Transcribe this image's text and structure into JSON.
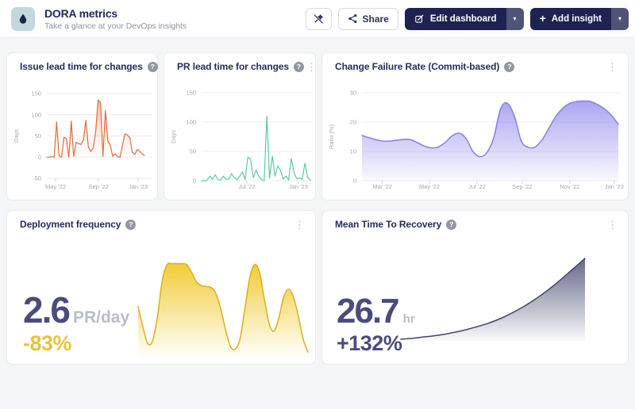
{
  "header": {
    "title": "DORA metrics",
    "subtitle": "Take a glance at your DevOps insights",
    "share_label": "Share",
    "edit_label": "Edit dashboard",
    "add_label": "Add insight"
  },
  "icons": {
    "help": "?",
    "kebab": "⋮",
    "caret": "▾",
    "plus": "+"
  },
  "colors": {
    "navy_button": "#1d2251",
    "navy_button_caret": "#4e5378",
    "title_navy": "#272c5e",
    "big_number": "#4b4b7d",
    "orange": "#e06c3e",
    "teal": "#5fc8a5",
    "purple": "#8b82ea",
    "yellow_line": "#dcae18",
    "yellow_delta": "#e9c23d",
    "navy_spark": "#40456b",
    "navy_delta": "#4b4b7d"
  },
  "chart_data": [
    {
      "type": "area",
      "title": "Issue lead time for changes",
      "ylabel": "Days",
      "ylim": [
        -50,
        150
      ],
      "yticks": [
        -50,
        0,
        50,
        100,
        150
      ],
      "xticks": [
        {
          "f": 0.09,
          "label": "May '22"
        },
        {
          "f": 0.53,
          "label": "Sep '22"
        },
        {
          "f": 0.935,
          "label": "Jan '23"
        }
      ],
      "values": [
        0,
        0,
        1,
        0,
        83,
        3,
        0,
        47,
        44,
        0,
        85,
        2,
        35,
        32,
        30,
        40,
        87,
        25,
        13,
        22,
        60,
        135,
        128,
        2,
        110,
        38,
        28,
        2,
        8,
        1,
        0,
        28,
        55,
        52,
        46,
        12,
        6,
        18,
        14,
        8,
        4
      ],
      "baseline": 0,
      "smooth": false,
      "color": "#e06c3e",
      "fill": [
        "rgba(229,109,58,0.55)",
        "rgba(247,202,178,0.05)"
      ],
      "grid": true,
      "legend": "none"
    },
    {
      "type": "line",
      "title": "PR lead time for changes",
      "ylabel": "Days",
      "ylim": [
        0,
        150
      ],
      "yticks": [
        0,
        50,
        100,
        150
      ],
      "xticks": [
        {
          "f": 0.416,
          "label": "Jul '22"
        },
        {
          "f": 0.89,
          "label": "Jan '23"
        }
      ],
      "values": [
        0,
        0,
        1,
        8,
        2,
        10,
        3,
        1,
        8,
        2,
        3,
        12,
        5,
        2,
        8,
        15,
        2,
        40,
        37,
        5,
        18,
        8,
        2,
        0,
        110,
        4,
        42,
        8,
        25,
        18,
        3,
        8,
        1,
        38,
        14,
        3,
        5,
        2,
        30,
        6,
        1
      ],
      "smooth": false,
      "color": "#5fc8a5",
      "fill": null,
      "grid": true,
      "legend": "none"
    },
    {
      "type": "area",
      "title": "Change Failure Rate (Commit-based)",
      "ylabel": "Ratio (%)",
      "ylim": [
        0,
        30
      ],
      "yticks": [
        0,
        10,
        20,
        30
      ],
      "xticks": [
        {
          "f": 0.08,
          "label": "Mar '22"
        },
        {
          "f": 0.263,
          "label": "May '22"
        },
        {
          "f": 0.449,
          "label": "Jul '22"
        },
        {
          "f": 0.625,
          "label": "Sep '22"
        },
        {
          "f": 0.811,
          "label": "Nov '22"
        },
        {
          "f": 0.984,
          "label": "Jan '23"
        }
      ],
      "values": [
        15.4,
        14.7,
        14.0,
        13.5,
        13.5,
        13.8,
        14.1,
        14.0,
        13.0,
        11.8,
        11.2,
        11.5,
        13.0,
        15.3,
        16.2,
        14.5,
        10.0,
        8.2,
        9.5,
        14.5,
        24.5,
        26.4,
        22.0,
        13.5,
        11.4,
        11.5,
        14.0,
        18.0,
        22.0,
        24.8,
        26.4,
        27.0,
        27.2,
        27.0,
        26.0,
        24.5,
        22.3,
        19.3
      ],
      "baseline": 0,
      "smooth": true,
      "color": "#8b82ea",
      "fill": [
        "rgba(140,131,236,0.8)",
        "rgba(140,131,236,0.05)"
      ],
      "grid": true,
      "legend": "none"
    },
    {
      "type": "area",
      "title": "Deployment frequency",
      "value": "2.6",
      "unit": "PR/day",
      "delta": "-83%",
      "delta_color": "#e9c23d",
      "ylim": [
        0,
        1
      ],
      "values": [
        0.52,
        0.3,
        0.13,
        0.16,
        0.42,
        0.8,
        0.96,
        0.97,
        0.97,
        0.97,
        0.96,
        0.88,
        0.78,
        0.74,
        0.73,
        0.72,
        0.66,
        0.5,
        0.28,
        0.1,
        0.07,
        0.18,
        0.5,
        0.82,
        0.96,
        0.88,
        0.6,
        0.34,
        0.26,
        0.4,
        0.62,
        0.7,
        0.62,
        0.42,
        0.18,
        0.04
      ],
      "smooth": true,
      "color": "#dcae18",
      "fill": [
        "rgba(240,199,39,0.95)",
        "rgba(240,199,39,0.03)"
      ],
      "grid": false,
      "legend": "none"
    },
    {
      "type": "area",
      "title": "Mean Time To Recovery",
      "value": "26.7",
      "unit": "hr",
      "delta": "+132%",
      "delta_color": "#4b4b7d",
      "ylim": [
        0,
        1
      ],
      "values": [
        0.02,
        0.03,
        0.045,
        0.06,
        0.08,
        0.105,
        0.135,
        0.17,
        0.21,
        0.26,
        0.32,
        0.39,
        0.47,
        0.56,
        0.66,
        0.77,
        0.885,
        1.0
      ],
      "smooth": true,
      "color": "#40456b",
      "fill": [
        "rgba(88,93,128,0.92)",
        "rgba(88,93,128,0.04)"
      ],
      "grid": false,
      "legend": "none"
    }
  ]
}
